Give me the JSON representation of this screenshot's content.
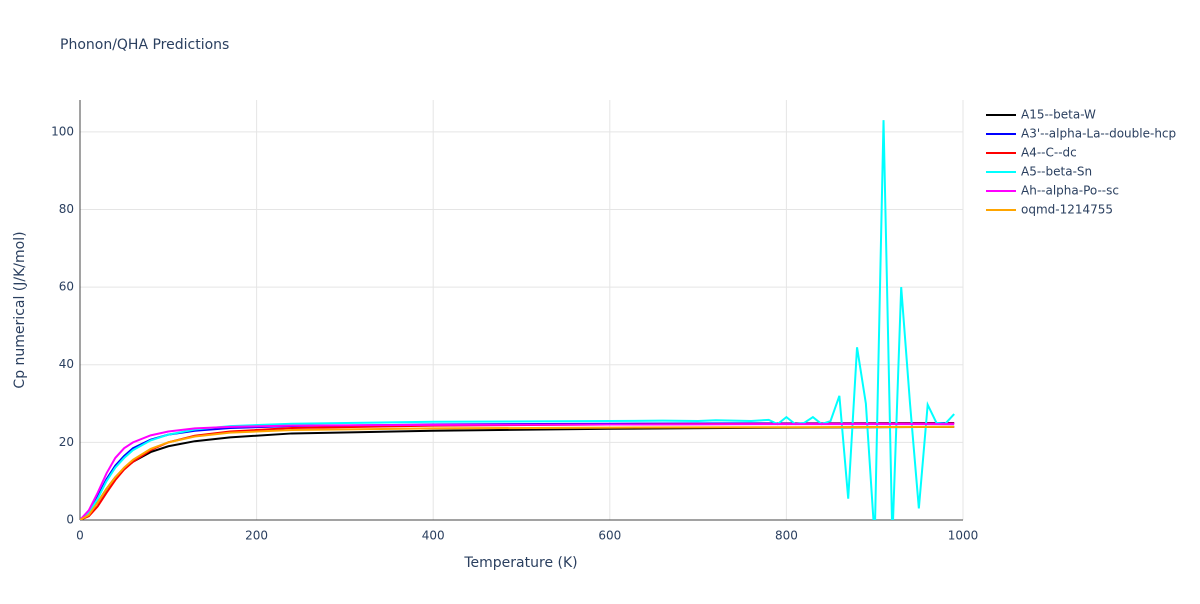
{
  "chart_data": {
    "type": "line",
    "title": "Phonon/QHA Predictions",
    "x_label": "Temperature (K)",
    "y_label": "Cp numerical (J/K/mol)",
    "xlim": [
      0,
      1000
    ],
    "ylim": [
      0,
      108.2
    ],
    "xticks": [
      0,
      200,
      400,
      600,
      800,
      1000
    ],
    "yticks": [
      0,
      20,
      40,
      60,
      80,
      100
    ],
    "grid": true,
    "legend": "right",
    "x": [
      0,
      10,
      20,
      30,
      40,
      50,
      60,
      80,
      100,
      130,
      170,
      240,
      400,
      600,
      800,
      990
    ],
    "series": [
      {
        "name": "A15--beta-W",
        "color": "#000000",
        "values": [
          0,
          1.5,
          4.5,
          8,
          11,
          13.3,
          15,
          17.5,
          19,
          20.3,
          21.3,
          22.3,
          23,
          23.5,
          23.8,
          24.0
        ]
      },
      {
        "name": "A3'--alpha-La--double-hcp",
        "color": "#0000ff",
        "values": [
          0,
          2,
          6,
          10.5,
          14,
          16.5,
          18.5,
          20.7,
          22,
          23,
          23.7,
          24.2,
          24.6,
          24.8,
          24.9,
          25.0
        ]
      },
      {
        "name": "A4--C--dc",
        "color": "#ff0000",
        "values": [
          0,
          1,
          3.5,
          7,
          10.3,
          13,
          15,
          18,
          20,
          21.7,
          22.8,
          23.7,
          24.3,
          24.6,
          24.8,
          24.9
        ]
      },
      {
        "name": "A5--beta-Sn",
        "color": "#00ffff",
        "x": [
          0,
          10,
          20,
          30,
          40,
          50,
          60,
          80,
          100,
          130,
          170,
          240,
          400,
          600,
          660,
          700,
          720,
          760,
          780,
          790,
          800,
          810,
          820,
          830,
          840,
          850,
          860,
          870,
          880,
          890,
          900,
          910,
          920,
          930,
          940,
          950,
          960,
          970,
          980,
          990
        ],
        "values": [
          0,
          1.8,
          5.5,
          10,
          13.5,
          16,
          18,
          20.5,
          22,
          23.3,
          24.2,
          24.8,
          25.3,
          25.5,
          25.6,
          25.5,
          25.7,
          25.5,
          25.8,
          24.7,
          26.5,
          24.7,
          25,
          26.5,
          24.7,
          25.5,
          32,
          5.5,
          44.5,
          30,
          -5,
          103,
          -5,
          60,
          30,
          3,
          29.7,
          25,
          24.8,
          27.3
        ]
      },
      {
        "name": "Ah--alpha-Po--sc",
        "color": "#ff00ff",
        "values": [
          0,
          2.5,
          7,
          12,
          16,
          18.5,
          20,
          21.8,
          22.8,
          23.6,
          24,
          24.3,
          24.5,
          24.6,
          24.7,
          24.7
        ]
      },
      {
        "name": "oqmd-1214755",
        "color": "#ffa500",
        "values": [
          0,
          1.3,
          4.5,
          8,
          11,
          13.5,
          15.5,
          18.3,
          20,
          21.5,
          22.5,
          23.2,
          23.6,
          23.8,
          23.9,
          24.0
        ]
      }
    ]
  }
}
